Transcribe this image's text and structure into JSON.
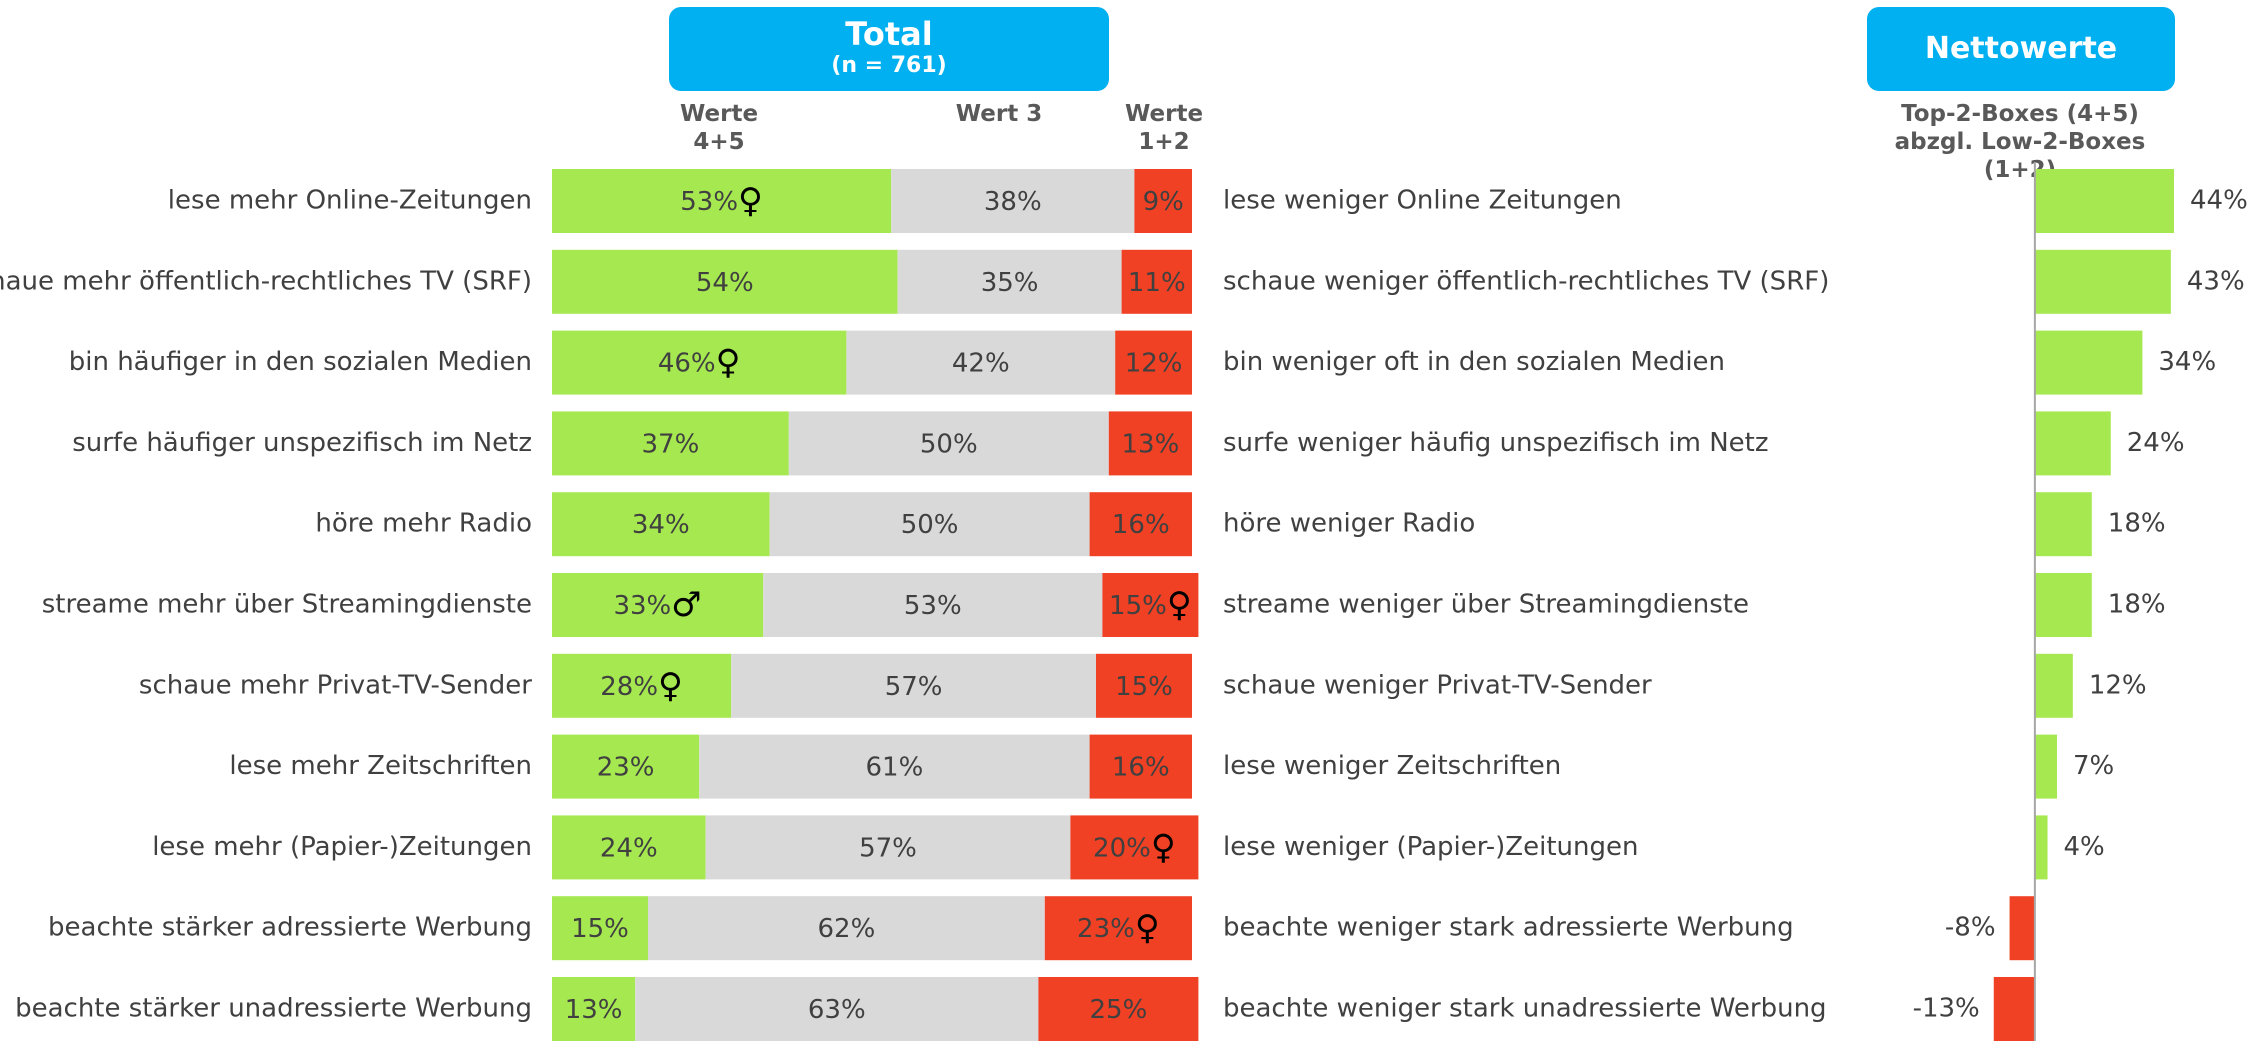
{
  "chart_data": [
    {
      "type": "stacked-bar",
      "orientation": "horizontal",
      "title": "Total",
      "subtitle": "(n = 761)",
      "categories": [
        "lese mehr Online-Zeitungen",
        "schaue mehr öffentlich-rechtliches TV (SRF)",
        "bin häufiger in den sozialen Medien",
        "surfe häufiger unspezifisch im Netz",
        "höre mehr Radio",
        "streame mehr über Streamingdienste",
        "schaue mehr Privat-TV-Sender",
        "lese mehr Zeitschriften",
        "lese mehr (Papier-)Zeitungen",
        "beachte stärker adressierte Werbung",
        "beachte stärker unadressierte Werbung"
      ],
      "opposite_categories": [
        "lese weniger Online Zeitungen",
        "schaue weniger öffentlich-rechtliches TV (SRF)",
        "bin weniger oft in den sozialen Medien",
        "surfe weniger häufig unspezifisch im Netz",
        "höre weniger Radio",
        "streame weniger über Streamingdienste",
        "schaue weniger Privat-TV-Sender",
        "lese weniger Zeitschriften",
        "lese weniger (Papier-)Zeitungen",
        "beachte weniger stark adressierte Werbung",
        "beachte weniger stark unadressierte Werbung"
      ],
      "xlim": [
        0,
        100
      ],
      "series": [
        {
          "name": "Werte 4+5",
          "color": "#a6e850",
          "values": [
            53,
            54,
            46,
            37,
            34,
            33,
            28,
            23,
            24,
            15,
            13
          ],
          "value_labels": [
            "53%",
            "54%",
            "46%",
            "37%",
            "34%",
            "33%",
            "28%",
            "23%",
            "24%",
            "15%",
            "13%"
          ],
          "symbols": [
            "♀",
            null,
            "♀",
            null,
            null,
            "♂",
            "♀",
            null,
            null,
            null,
            null
          ]
        },
        {
          "name": "Wert 3",
          "color": "#d9d9d9",
          "values": [
            38,
            35,
            42,
            50,
            50,
            53,
            57,
            61,
            57,
            62,
            63
          ],
          "value_labels": [
            "38%",
            "35%",
            "42%",
            "50%",
            "50%",
            "53%",
            "57%",
            "61%",
            "57%",
            "62%",
            "63%"
          ],
          "symbols": [
            null,
            null,
            null,
            null,
            null,
            null,
            null,
            null,
            null,
            null,
            null
          ]
        },
        {
          "name": "Werte 1+2",
          "color": "#f04124",
          "values": [
            9,
            11,
            12,
            13,
            16,
            15,
            15,
            16,
            20,
            23,
            25
          ],
          "value_labels": [
            "9%",
            "11%",
            "12%",
            "13%",
            "16%",
            "15%",
            "15%",
            "16%",
            "20%",
            "23%",
            "25%"
          ],
          "symbols": [
            null,
            null,
            null,
            null,
            null,
            "♀",
            null,
            null,
            "♀",
            "♀",
            null
          ]
        }
      ]
    },
    {
      "type": "bar",
      "orientation": "horizontal",
      "title": "Nettowerte",
      "subtitle": "Top-2-Boxes (4+5) abzgl. Low-2-Boxes (1+2)",
      "xlim": [
        -30,
        50
      ],
      "color": "#a6e850",
      "negative_color": "#f04124",
      "values": [
        44,
        43,
        34,
        24,
        18,
        18,
        12,
        7,
        4,
        -8,
        -13
      ],
      "value_labels": [
        "44%",
        "43%",
        "34%",
        "24%",
        "18%",
        "18%",
        "12%",
        "7%",
        "4%",
        "-8%",
        "-13%"
      ]
    }
  ]
}
